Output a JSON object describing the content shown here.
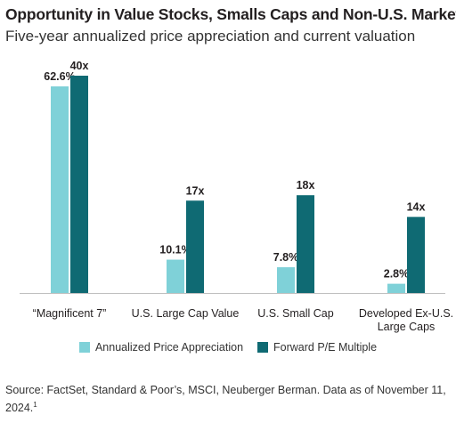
{
  "header": {
    "title": "Opportunity in Value Stocks, Smalls Caps and Non-U.S. Markets",
    "subtitle": "Five-year annualized price appreciation and current valuation"
  },
  "chart_data": {
    "type": "bar",
    "categories": [
      [
        "“Magnificent 7”"
      ],
      [
        "U.S. Large Cap Value"
      ],
      [
        "U.S. Small Cap"
      ],
      [
        "Developed Ex-U.S.",
        "Large Caps"
      ]
    ],
    "series": [
      {
        "name": "Annualized Price Appreciation",
        "values": [
          62.6,
          10.1,
          7.8,
          2.8
        ],
        "labels": [
          "62.6%",
          "10.1%",
          "7.8%",
          "2.8%"
        ],
        "color": "#7fd1d8"
      },
      {
        "name": "Forward P/E Multiple",
        "values": [
          40,
          17,
          18,
          14
        ],
        "labels": [
          "40x",
          "17x",
          "18x",
          "14x"
        ],
        "color": "#0f6a73"
      }
    ],
    "grid": false,
    "legend_position": "bottom"
  },
  "footer": {
    "source": "Source: FactSet, Standard & Poor’s, MSCI, Neuberger Berman. Data as of November 11, 2024.",
    "footnote_marker": "1"
  }
}
